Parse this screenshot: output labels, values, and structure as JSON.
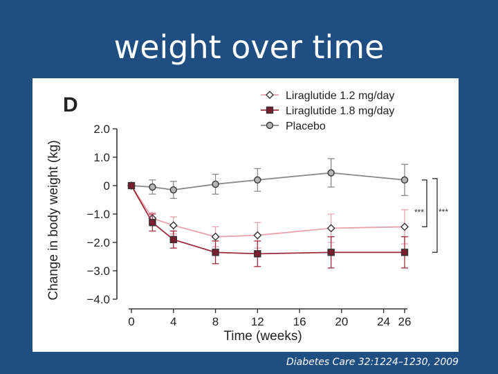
{
  "slide": {
    "title": "weight over time",
    "citation": "Diabetes Care 32:1224–1230, 2009"
  },
  "colors": {
    "background": "#1f4e82",
    "panel": "#ffffff",
    "axis": "#333333"
  },
  "chart_data": {
    "type": "line",
    "panel_label": "D",
    "title": "",
    "xlabel": "Time (weeks)",
    "ylabel": "Change in body weight (kg)",
    "xlim": [
      0,
      26
    ],
    "ylim": [
      -4.0,
      2.0
    ],
    "x_ticks": [
      0,
      4,
      8,
      12,
      16,
      20,
      24,
      26
    ],
    "x_tick_labels": [
      "0",
      "4",
      "8",
      "12",
      "16",
      "20",
      "24",
      "26"
    ],
    "y_ticks": [
      2.0,
      1.0,
      0,
      -1.0,
      -2.0,
      -3.0,
      -4.0
    ],
    "y_tick_labels": [
      "2.0",
      "1.0",
      "0",
      "−1.0",
      "−2.0",
      "−3.0",
      "−4.0"
    ],
    "grid": false,
    "legend_position": "top-center",
    "series": [
      {
        "name": "Liraglutide 1.2 mg/day",
        "marker": "diamond",
        "color": "#e8a3ad",
        "marker_fill": "#ffffff",
        "x": [
          0,
          2,
          4,
          8,
          12,
          19,
          26
        ],
        "y": [
          0,
          -1.15,
          -1.4,
          -1.8,
          -1.75,
          -1.5,
          -1.45
        ],
        "err": [
          0,
          0.2,
          0.3,
          0.35,
          0.45,
          0.5,
          0.6
        ]
      },
      {
        "name": "Liraglutide 1.8 mg/day",
        "marker": "square",
        "color": "#9e2b3b",
        "marker_fill": "#7a1e2d",
        "x": [
          0,
          2,
          4,
          8,
          12,
          19,
          26
        ],
        "y": [
          0,
          -1.3,
          -1.9,
          -2.35,
          -2.4,
          -2.35,
          -2.35
        ],
        "err": [
          0,
          0.3,
          0.3,
          0.4,
          0.45,
          0.55,
          0.55
        ]
      },
      {
        "name": "Placebo",
        "marker": "circle",
        "color": "#8a8a8a",
        "marker_fill": "#b5b5b5",
        "x": [
          0,
          2,
          4,
          8,
          12,
          19,
          26
        ],
        "y": [
          0,
          -0.05,
          -0.15,
          0.05,
          0.2,
          0.45,
          0.2
        ],
        "err": [
          0,
          0.25,
          0.3,
          0.35,
          0.4,
          0.5,
          0.55
        ]
      }
    ],
    "annotations": [
      {
        "text": "***",
        "bracket": "Liraglutide 1.2 mg/day vs Placebo"
      },
      {
        "text": "***",
        "bracket": "Liraglutide 1.8 mg/day vs Placebo"
      }
    ]
  }
}
